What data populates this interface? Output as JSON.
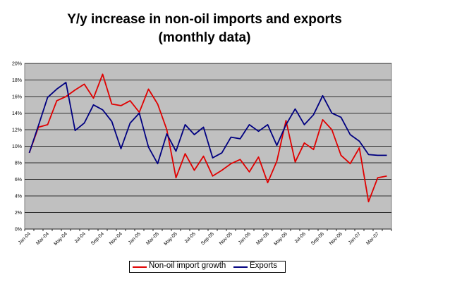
{
  "chart_data": {
    "type": "line",
    "title_line1": "Y/y increase in non-oil imports and exports",
    "title_line2": "(monthly data)",
    "y_ticks": [
      "0%",
      "2%",
      "4%",
      "6%",
      "8%",
      "10%",
      "12%",
      "14%",
      "16%",
      "18%",
      "20%"
    ],
    "ylim": [
      0,
      20
    ],
    "x_tick_labels": [
      "Jan-04",
      "Mar-04",
      "May-04",
      "Jul-04",
      "Sep-04",
      "Nov-04",
      "Jan-05",
      "Mar-05",
      "May-05",
      "Jul-05",
      "Sep-05",
      "Nov-05",
      "Jan-06",
      "Mar-06",
      "May-06",
      "Jul-06",
      "Sep-06",
      "Nov-06",
      "Jan-07",
      "Mar-07"
    ],
    "x": [
      "Jan-04",
      "Feb-04",
      "Mar-04",
      "Apr-04",
      "May-04",
      "Jun-04",
      "Jul-04",
      "Aug-04",
      "Sep-04",
      "Oct-04",
      "Nov-04",
      "Dec-04",
      "Jan-05",
      "Feb-05",
      "Mar-05",
      "Apr-05",
      "May-05",
      "Jun-05",
      "Jul-05",
      "Aug-05",
      "Sep-05",
      "Oct-05",
      "Nov-05",
      "Dec-05",
      "Jan-06",
      "Feb-06",
      "Mar-06",
      "Apr-06",
      "May-06",
      "Jun-06",
      "Jul-06",
      "Aug-06",
      "Sep-06",
      "Oct-06",
      "Nov-06",
      "Dec-06",
      "Jan-07",
      "Feb-07",
      "Mar-07",
      "Apr-07"
    ],
    "series": [
      {
        "name": "Non-oil import growth",
        "color": "#e00000",
        "values": [
          9.2,
          12.3,
          12.6,
          15.5,
          16.0,
          16.8,
          17.5,
          15.8,
          18.7,
          15.1,
          14.9,
          15.5,
          14.1,
          16.9,
          15.1,
          12.0,
          6.2,
          9.1,
          7.1,
          8.8,
          6.4,
          7.1,
          7.9,
          8.4,
          6.9,
          8.7,
          5.6,
          8.2,
          13.1,
          8.1,
          10.4,
          9.6,
          13.2,
          12.0,
          8.9,
          7.9,
          9.8,
          3.3,
          6.2,
          6.4
        ]
      },
      {
        "name": "Exports",
        "color": "#000080",
        "values": [
          9.2,
          12.5,
          15.9,
          16.9,
          17.7,
          11.9,
          12.8,
          15.0,
          14.4,
          13.0,
          9.7,
          12.8,
          14.0,
          9.9,
          7.9,
          11.5,
          9.4,
          12.6,
          11.4,
          12.3,
          8.6,
          9.2,
          11.1,
          10.9,
          12.6,
          11.8,
          12.6,
          10.1,
          12.6,
          14.5,
          12.6,
          13.8,
          16.1,
          14.0,
          13.5,
          11.4,
          10.6,
          9.0,
          8.9,
          8.9
        ]
      }
    ],
    "grid": true,
    "legend_position": "bottom-center",
    "plot_background": "#c0c0c0"
  }
}
